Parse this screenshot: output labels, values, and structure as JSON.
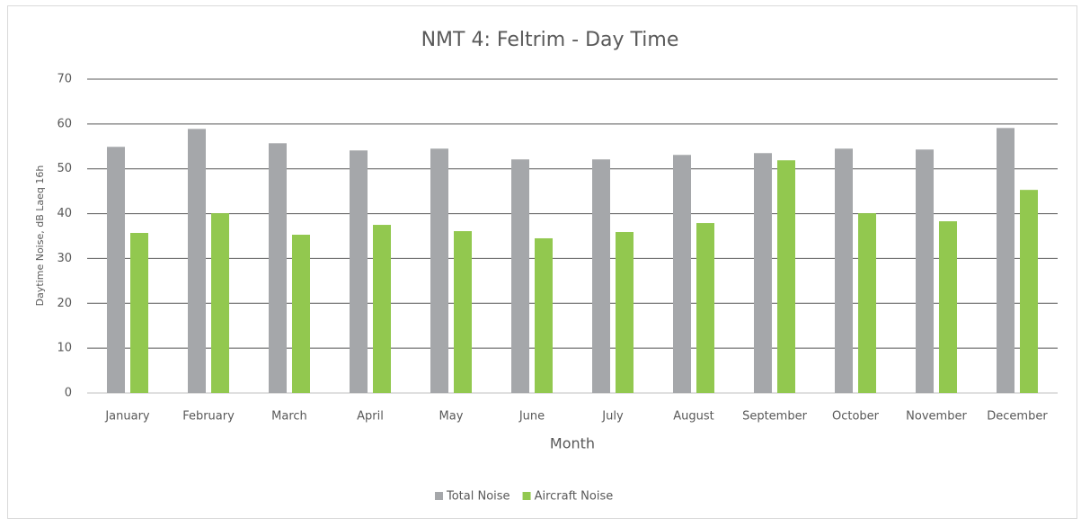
{
  "chart_data": {
    "type": "bar",
    "title": "NMT 4: Feltrim - Day Time",
    "x_label": "Month",
    "y_label": "Daytime Noise, dB Laeq 16h",
    "categories": [
      "January",
      "February",
      "March",
      "April",
      "May",
      "June",
      "July",
      "August",
      "September",
      "October",
      "November",
      "December"
    ],
    "series": [
      {
        "name": "Total Noise",
        "color": "#a5a7aa",
        "values": [
          54.9,
          58.9,
          55.7,
          54.1,
          54.5,
          52.1,
          52.1,
          53.1,
          53.5,
          54.5,
          54.3,
          59.1
        ]
      },
      {
        "name": "Aircraft Noise",
        "color": "#92c84f",
        "values": [
          35.7,
          40.1,
          35.3,
          37.5,
          36.1,
          34.5,
          35.9,
          37.9,
          51.9,
          40.1,
          38.3,
          45.3
        ]
      }
    ],
    "ylim": [
      0,
      70
    ],
    "yticks": [
      0,
      10,
      20,
      30,
      40,
      50,
      60,
      70
    ],
    "grid": true,
    "legend": "bottom"
  }
}
